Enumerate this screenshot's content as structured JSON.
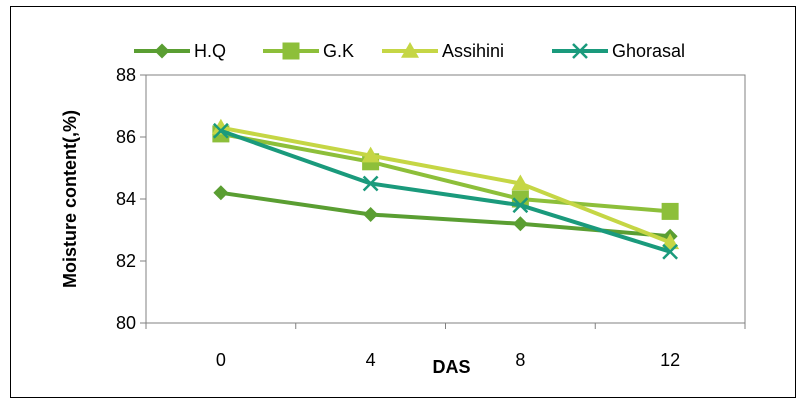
{
  "chart_data": {
    "type": "line",
    "title": "",
    "xlabel": "DAS",
    "ylabel": "Moisture content(,%)",
    "categories": [
      "0",
      "4",
      "8",
      "12"
    ],
    "ylim": [
      80,
      88
    ],
    "yticks": [
      "80",
      "82",
      "84",
      "86",
      "88"
    ],
    "grid": false,
    "legend_position": "top",
    "series": [
      {
        "name": "H.Q",
        "values": [
          84.2,
          83.5,
          83.2,
          82.8
        ],
        "color": "#5a9e32",
        "marker": "diamond"
      },
      {
        "name": "G.K",
        "values": [
          86.1,
          85.2,
          84.0,
          83.6
        ],
        "color": "#8dbf3a",
        "marker": "square"
      },
      {
        "name": "Assihini",
        "values": [
          86.3,
          85.4,
          84.5,
          82.6
        ],
        "color": "#c5d645",
        "marker": "triangle"
      },
      {
        "name": "Ghorasal",
        "values": [
          86.2,
          84.5,
          83.8,
          82.3
        ],
        "color": "#1a9a7c",
        "marker": "x"
      }
    ]
  }
}
